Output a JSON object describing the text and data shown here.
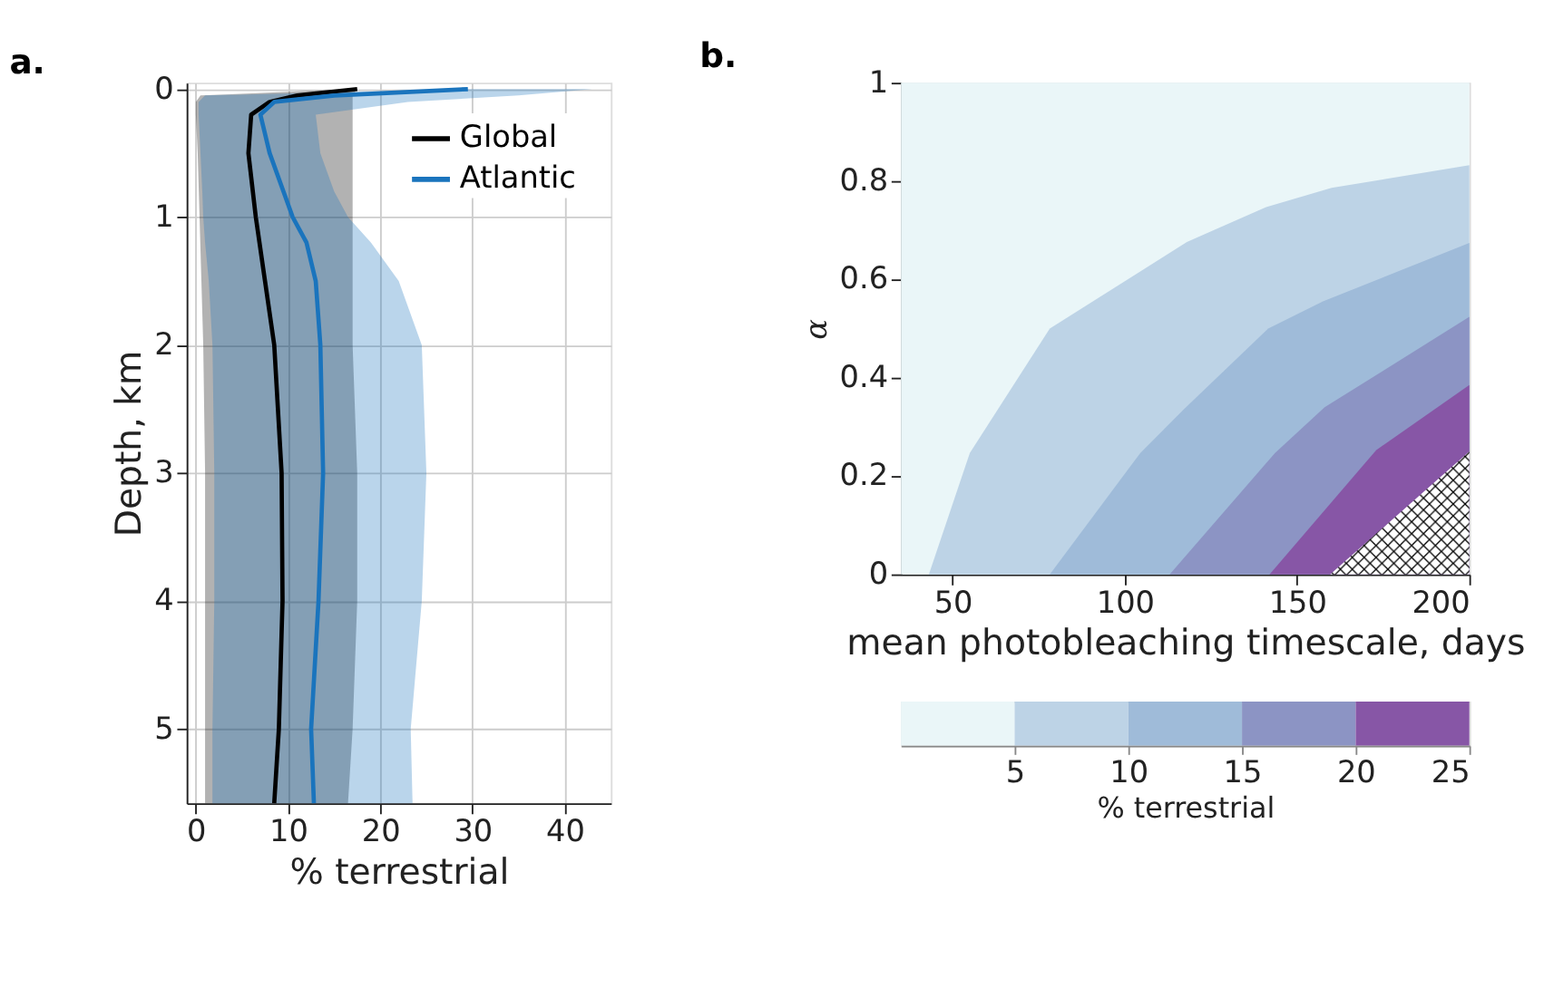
{
  "chart_data": [
    {
      "type": "line",
      "title": "a.",
      "orientation": "horizontal",
      "xlabel": "% terrestrial",
      "ylabel": "Depth, km",
      "xlim": [
        -1,
        45
      ],
      "xticks": [
        0,
        10,
        20,
        30,
        40
      ],
      "ylim": [
        5.58,
        -0.05
      ],
      "yticks": [
        {
          "value": 0,
          "label": "0"
        },
        {
          "value": 1,
          "label": "1"
        },
        {
          "value": 2,
          "label": "2"
        },
        {
          "value": 3,
          "label": "3"
        },
        {
          "value": 4,
          "label": "4"
        },
        {
          "value": 5,
          "label": "5"
        }
      ],
      "grid": true,
      "legend": "top right",
      "line_style": "solid",
      "marker": "none",
      "series": [
        {
          "name": "Global",
          "color": "#000000",
          "x": [
            0,
            0.05,
            0.1,
            0.2,
            0.5,
            1,
            1.5,
            2,
            3,
            4,
            5,
            5.58
          ],
          "values": [
            17.5,
            11,
            8,
            6,
            5.7,
            6.5,
            7.5,
            8.5,
            9.3,
            9.4,
            9,
            8.5
          ],
          "lower": [
            17,
            0.5,
            0,
            0,
            0.2,
            0.4,
            0.6,
            0.8,
            1,
            1,
            1,
            1
          ],
          "upper": [
            17.5,
            17,
            17,
            17,
            17,
            17,
            17,
            17,
            17.5,
            17.5,
            17,
            16.5
          ]
        },
        {
          "name": "Atlantic",
          "color": "#1a74bd",
          "x": [
            0,
            0.05,
            0.1,
            0.2,
            0.5,
            0.8,
            1,
            1.2,
            1.5,
            2,
            3,
            4,
            5,
            5.58
          ],
          "values": [
            29.5,
            15,
            8.5,
            7,
            8,
            9.5,
            10.5,
            12,
            13,
            13.5,
            13.8,
            13.3,
            12.5,
            12.8
          ],
          "lower": [
            29,
            1,
            0.3,
            0.3,
            0.5,
            0.7,
            0.8,
            1,
            1.4,
            1.8,
            2,
            2,
            1.8,
            1.8
          ],
          "upper": [
            43,
            35,
            23,
            13,
            13.5,
            15,
            16.5,
            19,
            22,
            24.5,
            25,
            24.5,
            23.3,
            23.5
          ]
        }
      ]
    },
    {
      "type": "area",
      "title": "b.",
      "xlabel": "mean photobleaching timescale, days",
      "ylabel": "α",
      "xlim": [
        35,
        200
      ],
      "xticks": [
        50,
        100,
        150,
        200
      ],
      "ylim": [
        0,
        1
      ],
      "yticks": [
        0,
        0.2,
        0.4,
        0.6,
        0.8,
        1
      ],
      "grid": false,
      "legend": false,
      "clabel": "% terrestrial",
      "clim": [
        0,
        25
      ],
      "cticks": [
        5,
        10,
        15,
        20,
        25
      ],
      "bands": [
        {
          "axis": "y",
          "from": 0,
          "to": 1,
          "color": "#eaf6f8"
        }
      ],
      "series": [
        {
          "color": "#bdd3e6",
          "x": [
            43.1,
            55,
            78.2,
            118,
            141,
            160,
            200
          ],
          "values": [
            0,
            0.247,
            0.5,
            0.676,
            0.747,
            0.786,
            0.832
          ]
        },
        {
          "color": "#9fbbd9",
          "x": [
            78.2,
            104.5,
            117,
            141.6,
            157.5,
            200
          ],
          "values": [
            0,
            0.247,
            0.335,
            0.5,
            0.555,
            0.674
          ]
        },
        {
          "color": "#8c94c4",
          "x": [
            113,
            143.6,
            158,
            177,
            200
          ],
          "values": [
            0,
            0.247,
            0.34,
            0.423,
            0.524
          ]
        },
        {
          "color": "#8756a6",
          "x": [
            142,
            173,
            200
          ],
          "values": [
            0,
            0.253,
            0.385
          ]
        },
        {
          "color": "#ffffff",
          "x": [
            159.6,
            200
          ],
          "values": [
            0,
            0.25
          ]
        }
      ]
    }
  ]
}
